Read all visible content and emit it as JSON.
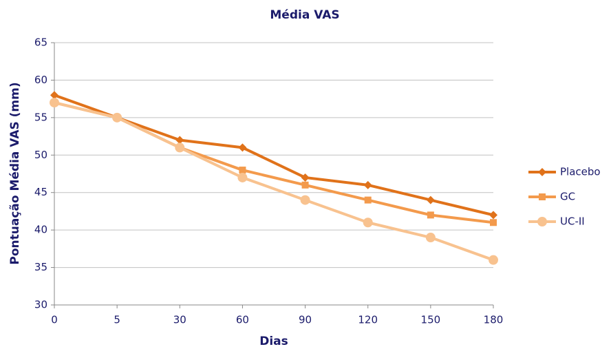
{
  "chart_data": {
    "type": "line",
    "title": "Média VAS",
    "x_label": "Dias",
    "y_label": "Pontuação Média VAS (mm)",
    "categories": [
      "0",
      "5",
      "30",
      "60",
      "90",
      "120",
      "150",
      "180"
    ],
    "series": [
      {
        "name": "Placebo",
        "color": "#e0721a",
        "marker": "diamond",
        "values": [
          58,
          55,
          52,
          51,
          47,
          46,
          44,
          42
        ]
      },
      {
        "name": "GC",
        "color": "#f39a4c",
        "marker": "square",
        "values": [
          57,
          55,
          51,
          48,
          46,
          44,
          42,
          41
        ]
      },
      {
        "name": "UC-II",
        "color": "#f8c28f",
        "marker": "circle",
        "values": [
          57,
          55,
          51,
          47,
          44,
          41,
          39,
          36
        ]
      }
    ],
    "ylim": [
      30,
      65
    ],
    "yticks": [
      30,
      35,
      40,
      45,
      50,
      55,
      60,
      65
    ],
    "grid": true,
    "legend": "right"
  }
}
